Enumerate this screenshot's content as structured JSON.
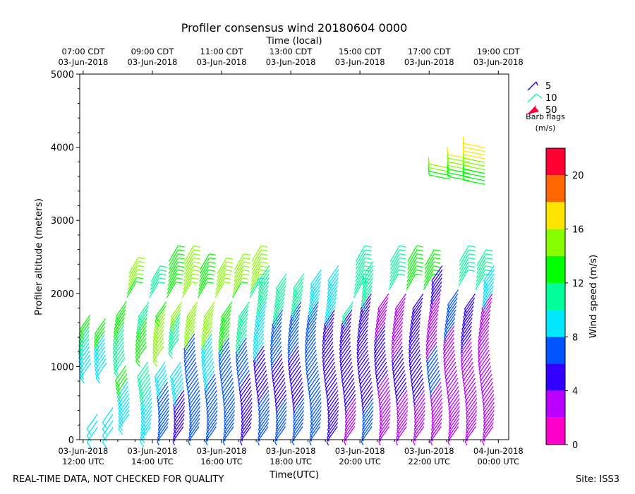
{
  "chart_data": {
    "type": "wind_barbs",
    "title": "Profiler consensus wind 20180604 0000",
    "xlabel_bottom": "Time(UTC)",
    "xlabel_top": "Time (local)",
    "ylabel": "Profiler altitude (meters)",
    "ylim": [
      0,
      5000
    ],
    "xlim_hours": [
      11.9,
      24.3
    ],
    "y_ticks": [
      0,
      1000,
      2000,
      3000,
      4000,
      5000
    ],
    "bottom_ticks": [
      {
        "h": 12,
        "line1": "03-Jun-2018",
        "line2": "12:00 UTC"
      },
      {
        "h": 14,
        "line1": "03-Jun-2018",
        "line2": "14:00 UTC"
      },
      {
        "h": 16,
        "line1": "03-Jun-2018",
        "line2": "16:00 UTC"
      },
      {
        "h": 18,
        "line1": "03-Jun-2018",
        "line2": "18:00 UTC"
      },
      {
        "h": 20,
        "line1": "03-Jun-2018",
        "line2": "20:00 UTC"
      },
      {
        "h": 22,
        "line1": "03-Jun-2018",
        "line2": "22:00 UTC"
      },
      {
        "h": 24,
        "line1": "04-Jun-2018",
        "line2": "00:00 UTC"
      }
    ],
    "top_ticks": [
      {
        "h": 12,
        "line1": "07:00 CDT",
        "line2": "03-Jun-2018"
      },
      {
        "h": 14,
        "line1": "09:00 CDT",
        "line2": "03-Jun-2018"
      },
      {
        "h": 16,
        "line1": "11:00 CDT",
        "line2": "03-Jun-2018"
      },
      {
        "h": 18,
        "line1": "13:00 CDT",
        "line2": "03-Jun-2018"
      },
      {
        "h": 20,
        "line1": "15:00 CDT",
        "line2": "03-Jun-2018"
      },
      {
        "h": 22,
        "line1": "17:00 CDT",
        "line2": "03-Jun-2018"
      },
      {
        "h": 24,
        "line1": "19:00 CDT",
        "line2": "03-Jun-2018"
      }
    ],
    "barb_legend": {
      "items": [
        {
          "label": "5",
          "color": "#2a00ff"
        },
        {
          "label": "10",
          "color": "#00ffaa"
        },
        {
          "label": "50",
          "color": "#ff0033"
        }
      ],
      "title_line1": "Barb flags",
      "title_line2": "(m/s)"
    },
    "colorbar": {
      "label": "Wind speed (m/s)",
      "range": [
        0,
        22
      ],
      "ticks": [
        0,
        4,
        8,
        12,
        16,
        20
      ],
      "colors": [
        "#ff00cc",
        "#bb00ff",
        "#3300ff",
        "#0055ff",
        "#00e6ff",
        "#00ff99",
        "#00ff00",
        "#88ff00",
        "#ffe600",
        "#ff6600",
        "#ff0033"
      ]
    },
    "series_note": "Each profile: time (hours UTC), altitude range (m), direction toward which barb shaft points (deg, screen), and dominant speed by altitude band (m/s)",
    "profiles": [
      {
        "h": 12.25,
        "low": [
          1050,
          1750
        ],
        "gaps": [],
        "speeds": [
          [
            1050,
            1350,
            9
          ],
          [
            1350,
            1550,
            10
          ],
          [
            1550,
            1750,
            13
          ]
        ],
        "extra": [
          [
            170,
            420,
            9
          ]
        ]
      },
      {
        "h": 12.7,
        "low": [
          1050,
          1700
        ],
        "gaps": [],
        "speeds": [
          [
            1050,
            1450,
            9
          ],
          [
            1450,
            1700,
            13
          ]
        ],
        "extra": [
          [
            170,
            480,
            9
          ]
        ]
      },
      {
        "h": 13.25,
        "low": [
          350,
          2300
        ],
        "gaps": [
          [
            1050,
            1100
          ]
        ],
        "speeds": [
          [
            350,
            800,
            9
          ],
          [
            800,
            1050,
            12
          ],
          [
            1100,
            1600,
            10
          ],
          [
            1600,
            2000,
            13
          ],
          [
            2000,
            2300,
            14
          ]
        ],
        "extra": []
      },
      {
        "h": 13.9,
        "low": [
          180,
          2200
        ],
        "gaps": [
          [
            1100,
            1250
          ]
        ],
        "speeds": [
          [
            180,
            700,
            9
          ],
          [
            700,
            1100,
            10
          ],
          [
            1250,
            1700,
            13
          ],
          [
            1700,
            2200,
            11
          ]
        ],
        "extra": []
      },
      {
        "h": 14.4,
        "low": [
          180,
          2450
        ],
        "gaps": [
          [
            1100,
            1250
          ]
        ],
        "speeds": [
          [
            180,
            800,
            6
          ],
          [
            800,
            1100,
            9
          ],
          [
            1250,
            1800,
            14
          ],
          [
            1800,
            2450,
            13
          ]
        ],
        "extra": []
      },
      {
        "h": 14.85,
        "low": [
          180,
          2450
        ],
        "gaps": [
          [
            1100,
            1350
          ]
        ],
        "speeds": [
          [
            180,
            700,
            5
          ],
          [
            700,
            1100,
            8
          ],
          [
            1350,
            1750,
            10
          ],
          [
            1750,
            2450,
            14
          ]
        ],
        "extra": []
      },
      {
        "h": 15.3,
        "low": [
          180,
          2350
        ],
        "gaps": [],
        "speeds": [
          [
            180,
            900,
            7
          ],
          [
            900,
            1450,
            6
          ],
          [
            1450,
            1900,
            14
          ],
          [
            1900,
            2350,
            13
          ]
        ],
        "extra": []
      },
      {
        "h": 15.8,
        "low": [
          180,
          2300
        ],
        "gaps": [],
        "speeds": [
          [
            180,
            900,
            7
          ],
          [
            900,
            1450,
            8
          ],
          [
            1450,
            1950,
            14
          ],
          [
            1950,
            2300,
            15
          ]
        ],
        "extra": []
      },
      {
        "h": 16.3,
        "low": [
          180,
          2350
        ],
        "gaps": [],
        "speeds": [
          [
            180,
            800,
            7
          ],
          [
            800,
            1400,
            6
          ],
          [
            1400,
            1950,
            13
          ],
          [
            1950,
            2350,
            14
          ]
        ],
        "extra": []
      },
      {
        "h": 16.8,
        "low": [
          180,
          2450
        ],
        "gaps": [],
        "speeds": [
          [
            180,
            900,
            5
          ],
          [
            900,
            1400,
            7
          ],
          [
            1400,
            2000,
            11
          ],
          [
            2000,
            2450,
            14
          ]
        ],
        "extra": []
      },
      {
        "h": 17.3,
        "low": [
          180,
          2400
        ],
        "gaps": [],
        "speeds": [
          [
            180,
            700,
            6
          ],
          [
            700,
            1300,
            5
          ],
          [
            1300,
            1900,
            8
          ],
          [
            1900,
            2400,
            10
          ]
        ],
        "extra": []
      },
      {
        "h": 17.8,
        "low": [
          180,
          2300
        ],
        "gaps": [],
        "speeds": [
          [
            180,
            600,
            6
          ],
          [
            600,
            1200,
            5
          ],
          [
            1200,
            1800,
            6
          ],
          [
            1800,
            2300,
            10
          ]
        ],
        "extra": []
      },
      {
        "h": 18.3,
        "low": [
          180,
          2300
        ],
        "gaps": [],
        "speeds": [
          [
            180,
            600,
            7
          ],
          [
            600,
            1300,
            5
          ],
          [
            1300,
            1900,
            6
          ],
          [
            1900,
            2300,
            10
          ]
        ],
        "extra": []
      },
      {
        "h": 18.8,
        "low": [
          180,
          2350
        ],
        "gaps": [],
        "speeds": [
          [
            180,
            600,
            7
          ],
          [
            600,
            1300,
            6
          ],
          [
            1300,
            1900,
            6
          ],
          [
            1900,
            2350,
            9
          ]
        ],
        "extra": []
      },
      {
        "h": 19.3,
        "low": [
          180,
          2400
        ],
        "gaps": [],
        "speeds": [
          [
            180,
            600,
            4
          ],
          [
            600,
            1200,
            5
          ],
          [
            1200,
            1800,
            5
          ],
          [
            1800,
            2400,
            9
          ]
        ],
        "extra": []
      },
      {
        "h": 19.8,
        "low": [
          180,
          2450
        ],
        "gaps": [],
        "speeds": [
          [
            180,
            600,
            3
          ],
          [
            600,
            1200,
            5
          ],
          [
            1200,
            1800,
            5
          ],
          [
            1800,
            2450,
            11
          ]
        ],
        "extra": []
      },
      {
        "h": 20.3,
        "low": [
          180,
          2450
        ],
        "gaps": [],
        "speeds": [
          [
            180,
            600,
            6
          ],
          [
            600,
            1300,
            5
          ],
          [
            1300,
            2000,
            5
          ],
          [
            2000,
            2450,
            10
          ]
        ],
        "extra": []
      },
      {
        "h": 20.8,
        "low": [
          180,
          2450
        ],
        "gaps": [],
        "speeds": [
          [
            180,
            900,
            3
          ],
          [
            900,
            1600,
            5
          ],
          [
            1600,
            2000,
            3
          ],
          [
            2000,
            2450,
            11
          ]
        ],
        "extra": []
      },
      {
        "h": 21.3,
        "low": [
          180,
          2450
        ],
        "gaps": [],
        "speeds": [
          [
            180,
            700,
            3
          ],
          [
            700,
            1300,
            4
          ],
          [
            1300,
            2000,
            3
          ],
          [
            2000,
            2450,
            12
          ]
        ],
        "extra": []
      },
      {
        "h": 21.8,
        "low": [
          180,
          2400
        ],
        "gaps": [],
        "speeds": [
          [
            180,
            700,
            3
          ],
          [
            700,
            1300,
            5
          ],
          [
            1300,
            2000,
            4
          ],
          [
            2000,
            2400,
            12
          ]
        ],
        "extra": []
      },
      {
        "h": 22.3,
        "low": [
          180,
          2400
        ],
        "gaps": [],
        "speeds": [
          [
            180,
            800,
            3
          ],
          [
            800,
            1300,
            6
          ],
          [
            1300,
            2000,
            3
          ],
          [
            2000,
            2400,
            5
          ]
        ],
        "extra": []
      },
      {
        "h": 22.8,
        "low": [
          180,
          2450
        ],
        "gaps": [],
        "speeds": [
          [
            180,
            1000,
            3
          ],
          [
            1000,
            1600,
            3
          ],
          [
            1600,
            2100,
            6
          ],
          [
            2100,
            2450,
            11
          ]
        ],
        "extra": []
      },
      {
        "h": 23.3,
        "low": [
          180,
          2400
        ],
        "gaps": [],
        "speeds": [
          [
            180,
            800,
            3
          ],
          [
            800,
            1400,
            3
          ],
          [
            1400,
            2000,
            5
          ],
          [
            2000,
            2400,
            11
          ]
        ],
        "extra": []
      },
      {
        "h": 23.8,
        "low": [
          180,
          2400
        ],
        "gaps": [],
        "speeds": [
          [
            180,
            1000,
            3
          ],
          [
            1000,
            1600,
            3
          ],
          [
            1600,
            2000,
            3
          ],
          [
            2000,
            2400,
            9
          ]
        ],
        "extra": []
      }
    ],
    "upper_profiles": [
      {
        "h": 22.0,
        "range": [
          3620,
          3800
        ],
        "speed": 15
      },
      {
        "h": 22.55,
        "range": [
          3600,
          3920
        ],
        "speed": 15
      },
      {
        "h": 23.0,
        "range": [
          3550,
          4050
        ],
        "speed": 15
      }
    ]
  },
  "footer": {
    "left": "REAL-TIME DATA, NOT CHECKED FOR QUALITY",
    "right": "Site: ISS3"
  }
}
